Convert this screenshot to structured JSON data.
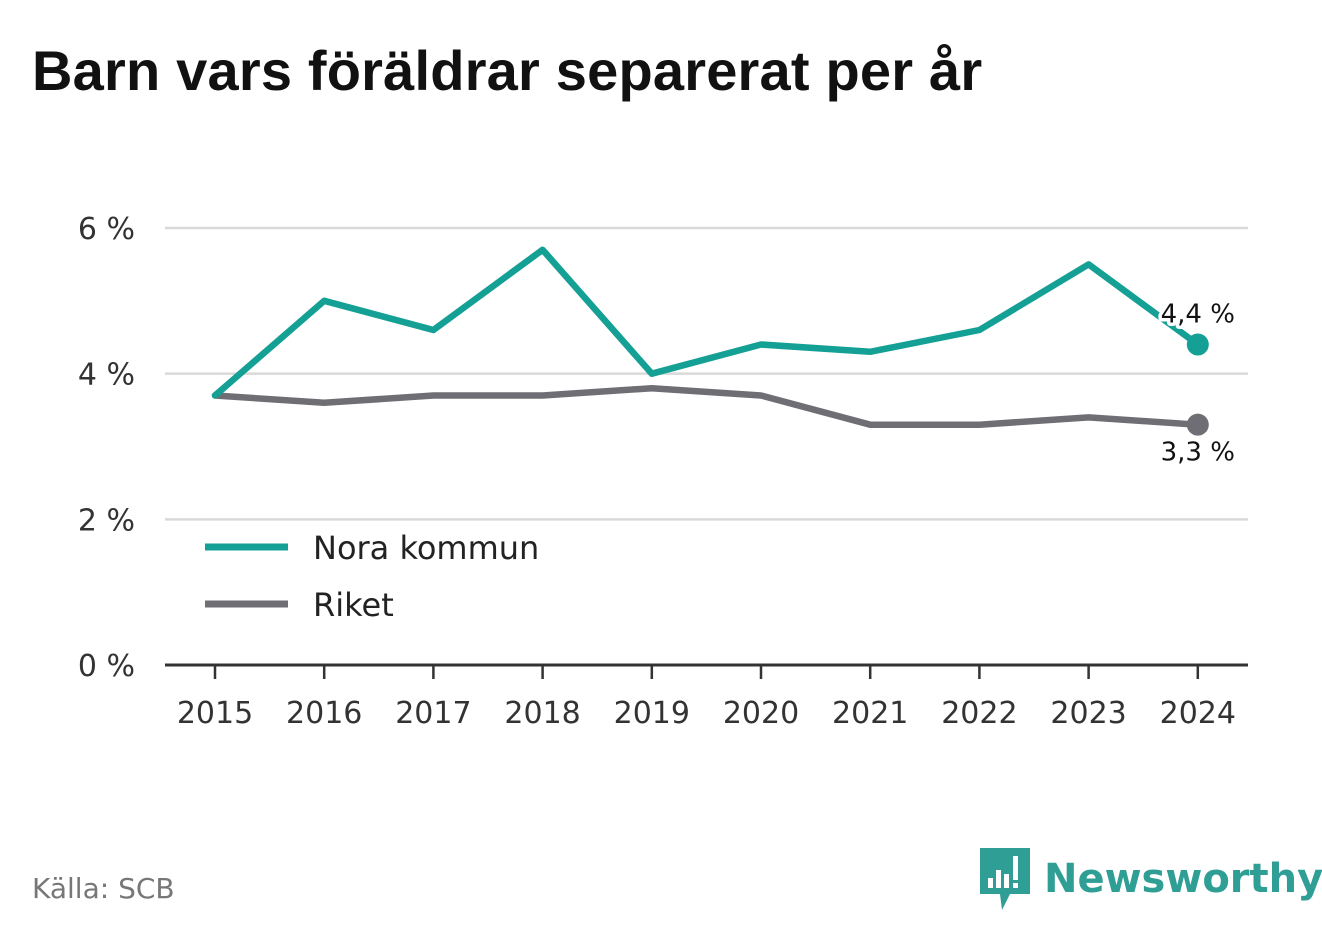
{
  "title": "Barn vars föräldrar separerat per år",
  "source": "Källa: SCB",
  "brand": {
    "name": "Newsworthy",
    "icon": "newsworthy-bar-chart-icon",
    "color": "#2f9e95"
  },
  "chart_data": {
    "type": "line",
    "title": "Barn vars föräldrar separerat per år",
    "x": [
      "2015",
      "2016",
      "2017",
      "2018",
      "2019",
      "2020",
      "2021",
      "2022",
      "2023",
      "2024"
    ],
    "series": [
      {
        "name": "Nora kommun",
        "color": "#14a095",
        "values": [
          3.7,
          5.0,
          4.6,
          5.7,
          4.0,
          4.4,
          4.3,
          4.6,
          5.5,
          4.4
        ],
        "end_label": "4,4 %"
      },
      {
        "name": "Riket",
        "color": "#6f6e75",
        "values": [
          3.7,
          3.6,
          3.7,
          3.7,
          3.8,
          3.7,
          3.3,
          3.3,
          3.4,
          3.3
        ],
        "end_label": "3,3 %"
      }
    ],
    "ylim": [
      0,
      6
    ],
    "yticks": [
      0,
      2,
      4,
      6
    ],
    "ytick_labels": [
      "0 %",
      "2 %",
      "4 %",
      "6 %"
    ],
    "grid": true,
    "legend_position": "bottom-left"
  }
}
